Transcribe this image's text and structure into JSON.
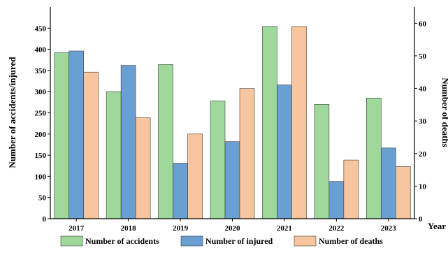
{
  "chart_data": {
    "type": "bar",
    "xlabel": "Year",
    "ylabel": "Number of accidents/injured",
    "y2label": "Number of deaths",
    "categories": [
      "2017",
      "2018",
      "2019",
      "2020",
      "2021",
      "2022",
      "2023"
    ],
    "ylim": [
      0,
      500
    ],
    "yticks": [
      0,
      50,
      100,
      150,
      200,
      250,
      300,
      350,
      400,
      450
    ],
    "y2lim": [
      0,
      65
    ],
    "y2ticks": [
      0,
      10,
      20,
      30,
      40,
      50,
      60
    ],
    "series": [
      {
        "name": "Number of accidents",
        "axis": "left",
        "color": "#9ed89a",
        "values": [
          392,
          300,
          364,
          278,
          454,
          270,
          285
        ]
      },
      {
        "name": "Number of injured",
        "axis": "left",
        "color": "#6a9fd3",
        "values": [
          396,
          362,
          131,
          182,
          316,
          88,
          167
        ]
      },
      {
        "name": "Number of deaths",
        "axis": "right",
        "color": "#f8c69e",
        "values": [
          45,
          31,
          26,
          40,
          59,
          18,
          16
        ]
      }
    ],
    "legend_position": "bottom",
    "grid": false
  }
}
